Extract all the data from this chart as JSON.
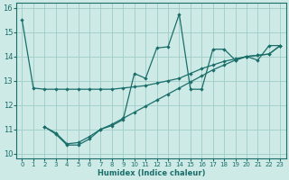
{
  "xlabel": "Humidex (Indice chaleur)",
  "xlim": [
    -0.5,
    23.5
  ],
  "ylim": [
    9.8,
    16.2
  ],
  "yticks": [
    10,
    11,
    12,
    13,
    14,
    15,
    16
  ],
  "xticks": [
    0,
    1,
    2,
    3,
    4,
    5,
    6,
    7,
    8,
    9,
    10,
    11,
    12,
    13,
    14,
    15,
    16,
    17,
    18,
    19,
    20,
    21,
    22,
    23
  ],
  "bg_color": "#ceeae6",
  "grid_color": "#9eccc8",
  "line_color": "#1a6e6a",
  "line1_x": [
    0,
    1,
    2,
    3,
    4,
    5,
    6,
    7,
    8,
    9,
    10,
    11,
    12,
    13,
    14,
    15,
    16,
    17,
    18,
    19,
    20,
    21,
    22,
    23
  ],
  "line1_y": [
    15.5,
    12.7,
    12.65,
    12.65,
    12.65,
    12.65,
    12.65,
    12.65,
    12.65,
    12.7,
    12.75,
    12.8,
    12.9,
    13.0,
    13.1,
    13.3,
    13.5,
    13.65,
    13.8,
    13.9,
    14.0,
    14.05,
    14.1,
    14.45
  ],
  "line2_x": [
    2,
    3,
    4,
    5,
    6,
    7,
    8,
    9,
    10,
    11,
    12,
    13,
    14,
    15,
    16,
    17,
    18,
    19,
    20,
    21,
    22,
    23
  ],
  "line2_y": [
    11.1,
    10.8,
    10.35,
    10.35,
    10.6,
    11.0,
    11.15,
    11.4,
    13.3,
    13.1,
    14.35,
    14.4,
    15.75,
    12.65,
    12.65,
    14.3,
    14.3,
    13.85,
    14.0,
    13.85,
    14.45,
    14.45
  ],
  "line3_x": [
    2,
    3,
    4,
    5,
    6,
    7,
    8,
    9,
    10,
    11,
    12,
    13,
    14,
    15,
    16,
    17,
    18,
    19,
    20,
    21,
    22,
    23
  ],
  "line3_y": [
    11.1,
    10.85,
    10.4,
    10.45,
    10.7,
    11.0,
    11.2,
    11.45,
    11.7,
    11.95,
    12.2,
    12.45,
    12.7,
    12.95,
    13.2,
    13.45,
    13.65,
    13.85,
    14.0,
    14.05,
    14.1,
    14.45
  ]
}
